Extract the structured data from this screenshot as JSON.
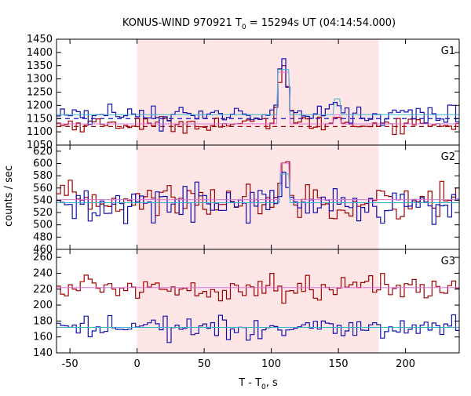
{
  "chart_data": {
    "type": "line",
    "title": "KONUS-WIND 970921 T",
    "title_sub": "0",
    "title_rest": " = 15294s UT (04:14:54.000)",
    "xlabel": "T - T",
    "xlabel_sub": "0",
    "xlabel_rest": ", s",
    "ylabel": "counts / sec",
    "xlim": [
      -60,
      240
    ],
    "x_ticks": [
      -50,
      0,
      50,
      100,
      150,
      200
    ],
    "highlight_interval": [
      0,
      180
    ],
    "colors": {
      "background_band": "#ffe6e6",
      "red": "#a00000",
      "blue": "#1010b0",
      "pink_fit": "#e070e0",
      "cyan_fit": "#40b0d0"
    },
    "panels": [
      {
        "name": "G1",
        "ylim": [
          1050,
          1450
        ],
        "y_ticks": [
          1050,
          1100,
          1150,
          1200,
          1250,
          1300,
          1350,
          1400,
          1450
        ],
        "bin_width": 2.944,
        "red_base": 1130,
        "red_noise": 14,
        "blue_base": 1165,
        "blue_noise": 18,
        "background_levels": {
          "dashed_red": 1120,
          "dashed_blue": 1150,
          "fit_cyan": 1165,
          "fit_pink": 1130
        },
        "peaks": [
          {
            "center": 109,
            "width": 3.5,
            "red_amp": 230,
            "blue_amp": 200
          },
          {
            "center": 149,
            "width": 2.0,
            "red_amp": 40,
            "blue_amp": 70
          }
        ]
      },
      {
        "name": "G2",
        "ylim": [
          460,
          630
        ],
        "y_ticks": [
          460,
          480,
          500,
          520,
          540,
          560,
          580,
          600,
          620
        ],
        "bin_width": 2.944,
        "red_base": 540,
        "red_noise": 14,
        "blue_base": 534,
        "blue_noise": 15,
        "background_levels": {
          "fit_cyan": 536,
          "fit_pink": 541
        },
        "peaks": [
          {
            "center": 110,
            "width": 3.0,
            "red_amp": 70,
            "blue_amp": 55
          }
        ]
      },
      {
        "name": "G3",
        "ylim": [
          140,
          270
        ],
        "y_ticks": [
          140,
          160,
          180,
          200,
          220,
          240,
          260
        ],
        "bin_width": 2.944,
        "red_base": 222,
        "red_noise": 8,
        "blue_base": 172,
        "blue_noise": 7,
        "background_levels": {
          "fit_cyan": 172,
          "fit_pink": 222
        },
        "peaks": []
      }
    ]
  }
}
